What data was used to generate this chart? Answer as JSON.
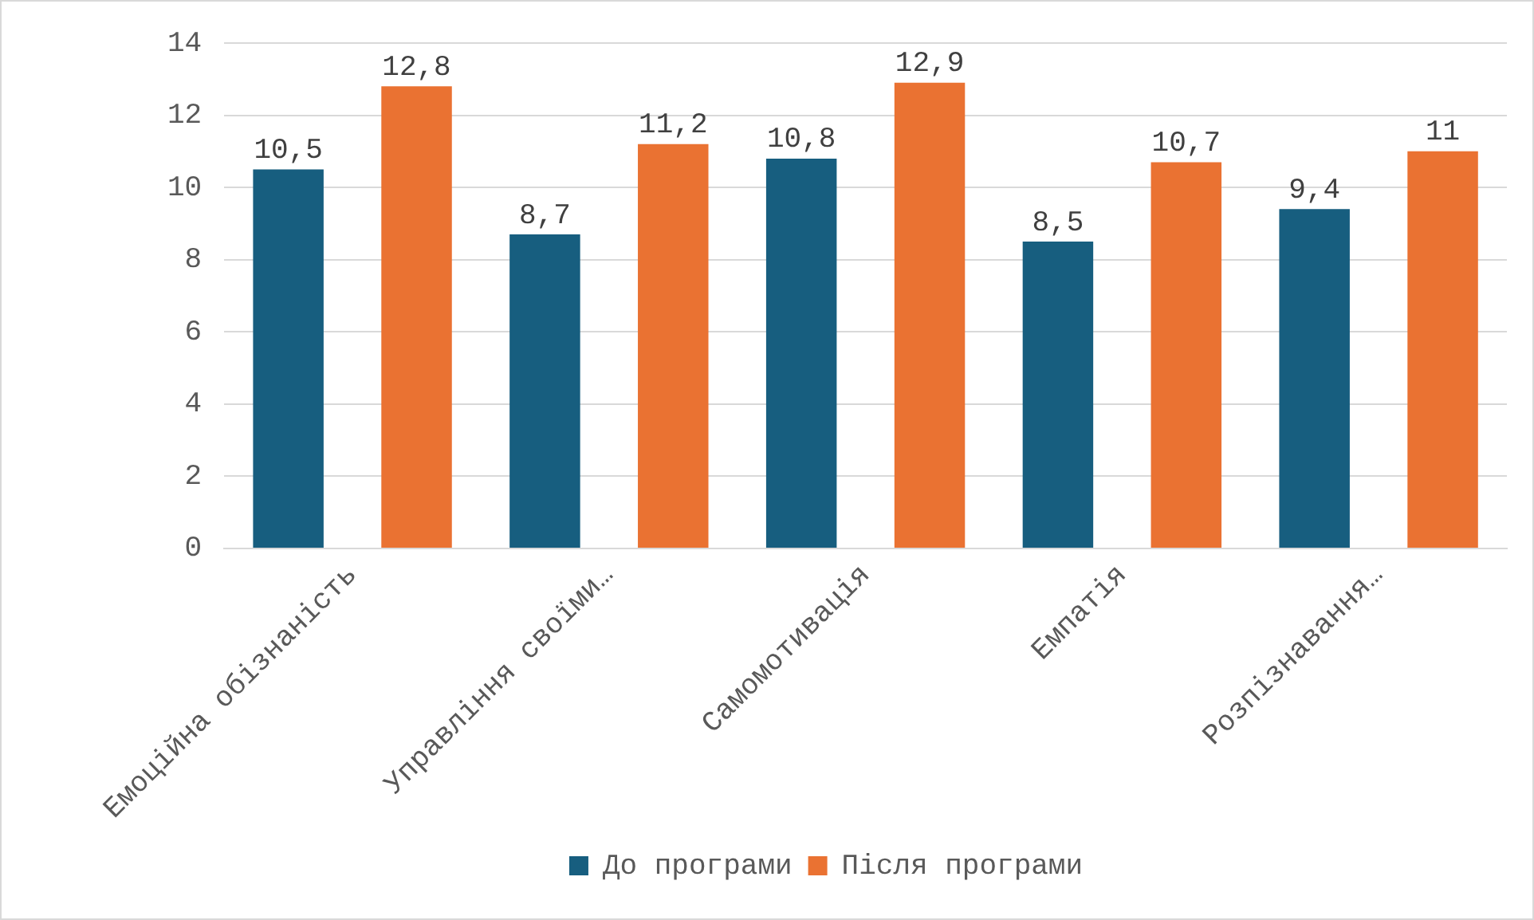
{
  "chart_data": {
    "type": "bar",
    "categories": [
      "Емоційна обізнаність",
      "Управління своїми…",
      "Самомотивація",
      "Емпатія",
      "Розпізнавання…"
    ],
    "series": [
      {
        "name": "До програми",
        "color": "#175e7f",
        "values": [
          10.5,
          8.7,
          10.8,
          8.5,
          9.4
        ],
        "value_labels": [
          "10,5",
          "8,7",
          "10,8",
          "8,5",
          "9,4"
        ]
      },
      {
        "name": "Після програми",
        "color": "#ea7232",
        "values": [
          12.8,
          11.2,
          12.9,
          10.7,
          11
        ],
        "value_labels": [
          "12,8",
          "11,2",
          "12,9",
          "10,7",
          "11"
        ]
      }
    ],
    "ylim": [
      0,
      14
    ],
    "yticks": [
      0,
      2,
      4,
      6,
      8,
      10,
      12,
      14
    ],
    "grid": "y",
    "legend": "bottom"
  }
}
